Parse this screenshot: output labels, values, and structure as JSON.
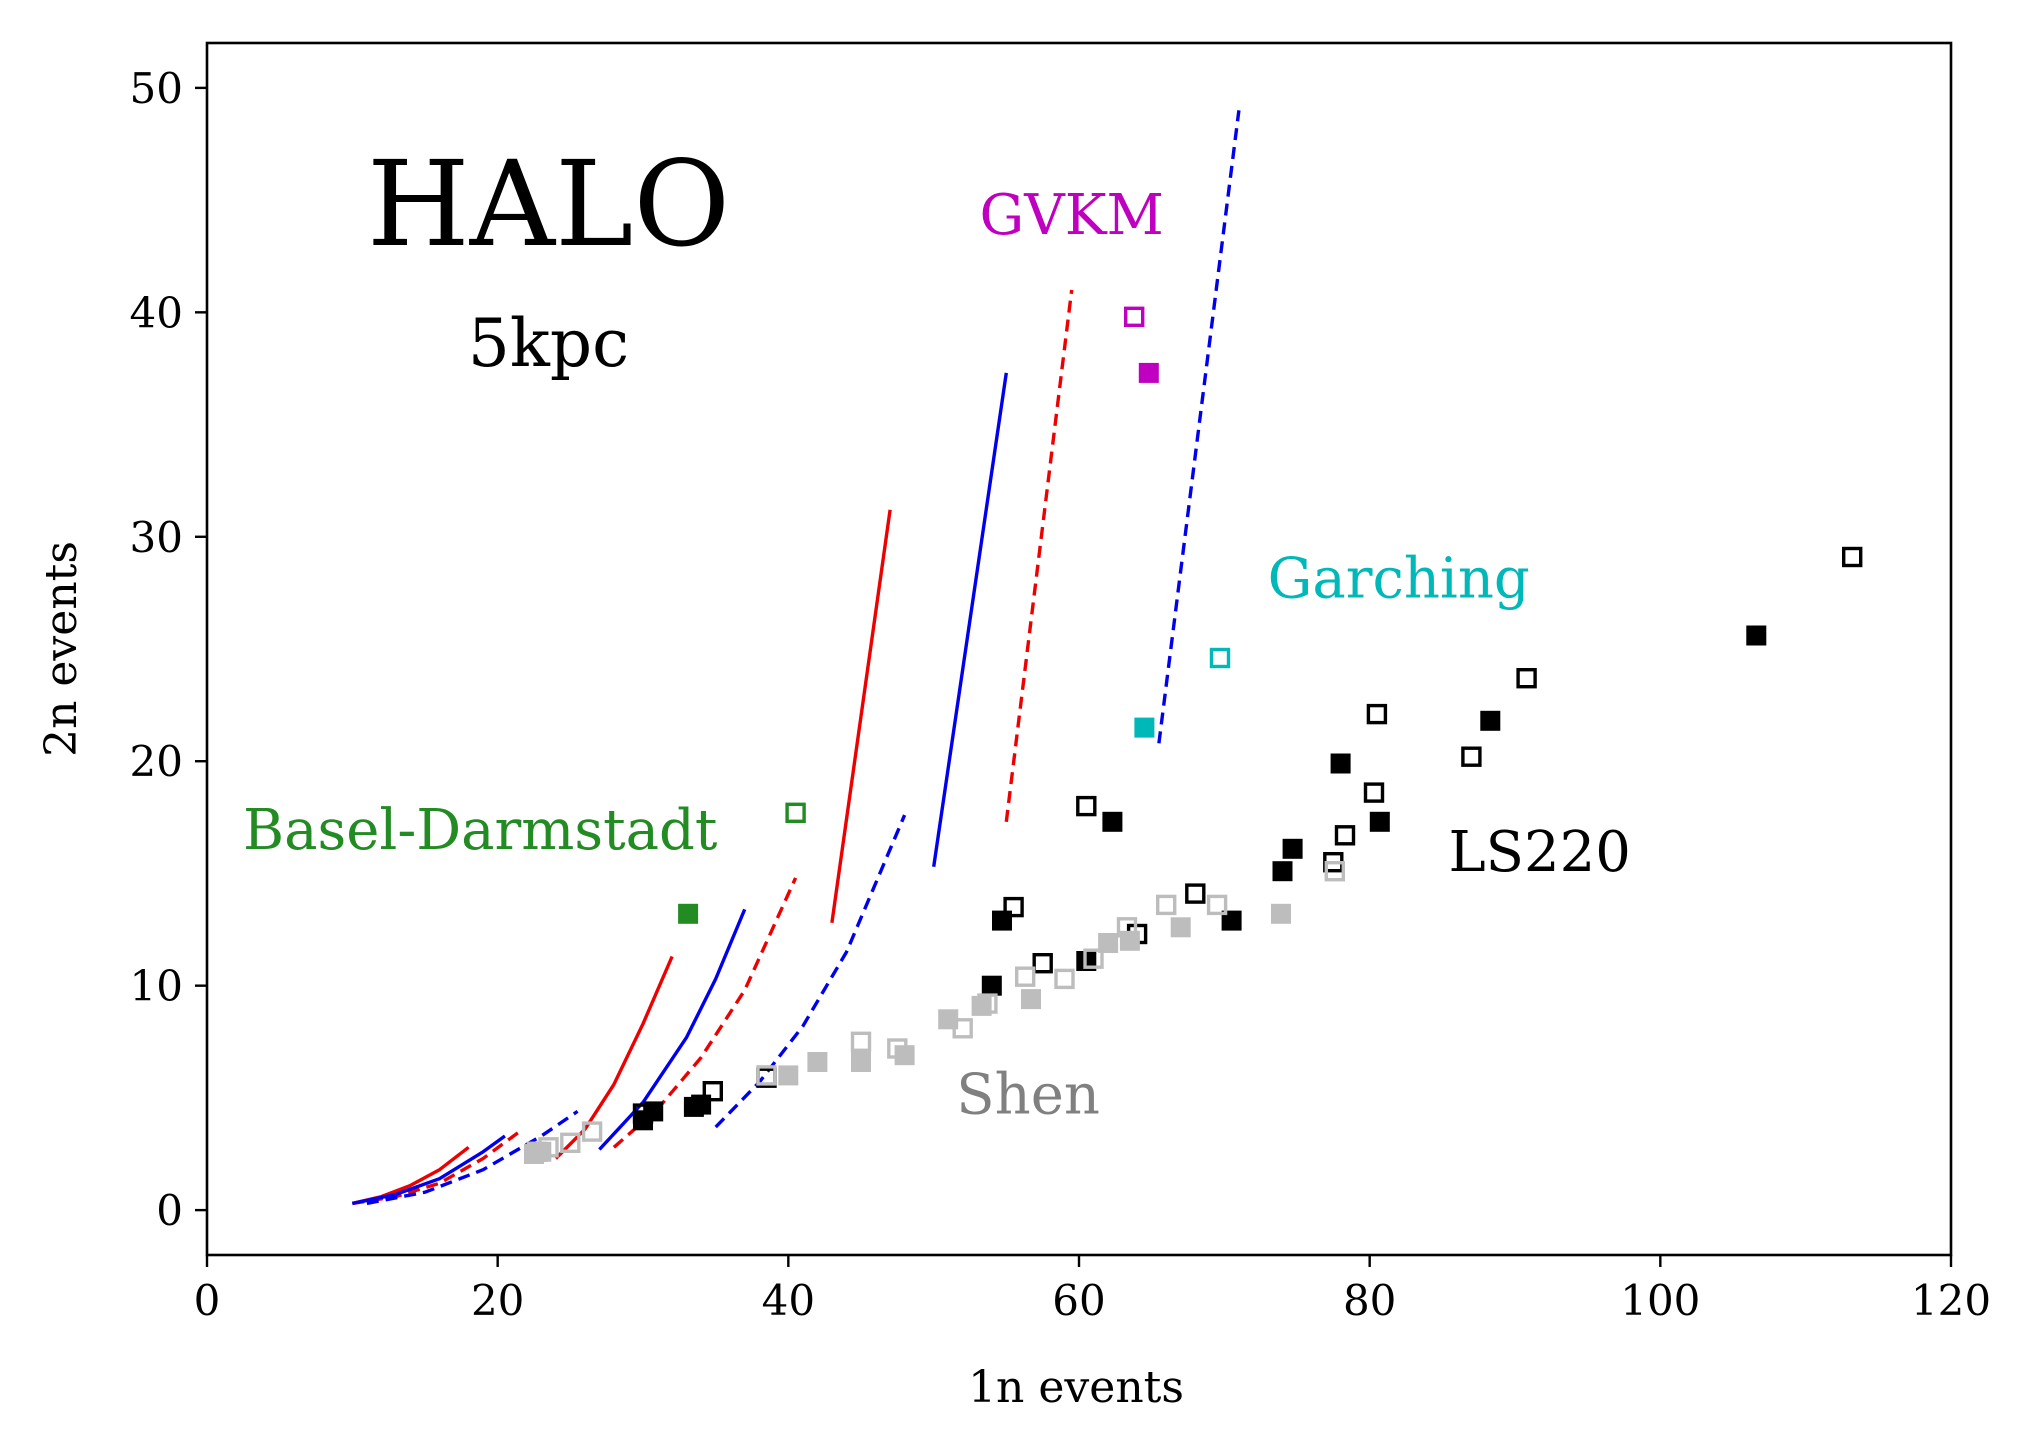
{
  "chart_data": {
    "type": "scatter",
    "title": "",
    "xlabel": "1n events",
    "ylabel": "2n events",
    "xlim": [
      0,
      120
    ],
    "ylim": [
      -2,
      52
    ],
    "xticks": [
      0,
      20,
      40,
      60,
      80,
      100,
      120
    ],
    "yticks": [
      0,
      10,
      20,
      30,
      40,
      50
    ],
    "grid": false,
    "annotations": [
      {
        "text": "HALO",
        "x": 23.5,
        "y": 43,
        "size": "xlarge",
        "color": "#000000"
      },
      {
        "text": "5kpc",
        "x": 23.5,
        "y": 37.6,
        "size": "large",
        "color": "#000000"
      },
      {
        "text": "GVKM",
        "x": 59.5,
        "y": 43.5,
        "size": "medium",
        "color": "#c000c0"
      },
      {
        "text": "Garching",
        "x": 82,
        "y": 27.3,
        "size": "medium",
        "color": "#00b8b8"
      },
      {
        "text": "Basel-Darmstadt",
        "x": 18.8,
        "y": 16.1,
        "size": "medium",
        "color": "#228b22"
      },
      {
        "text": "LS220",
        "x": 91.7,
        "y": 15.1,
        "size": "medium",
        "color": "#000000"
      },
      {
        "text": "Shen",
        "x": 56.5,
        "y": 4.3,
        "size": "medium",
        "color": "#808080"
      }
    ],
    "colors": {
      "red": "#ee0000",
      "blue": "#0000ee",
      "black": "#000000",
      "gray": "#bdbdbd",
      "green": "#228b22",
      "magenta": "#c000c0",
      "cyan": "#00b8b8"
    },
    "line_series": [
      {
        "color": "red",
        "style": "solid",
        "points": [
          [
            10,
            0.3
          ],
          [
            12,
            0.6
          ],
          [
            14,
            1.1
          ],
          [
            16,
            1.8
          ],
          [
            18,
            2.8
          ]
        ]
      },
      {
        "color": "red",
        "style": "dashed",
        "points": [
          [
            10,
            0.3
          ],
          [
            13,
            0.6
          ],
          [
            16,
            1.2
          ],
          [
            19,
            2.3
          ],
          [
            21.5,
            3.5
          ]
        ]
      },
      {
        "color": "red",
        "style": "solid",
        "points": [
          [
            24,
            2.3
          ],
          [
            26,
            3.6
          ],
          [
            28,
            5.6
          ],
          [
            30,
            8.3
          ],
          [
            32,
            11.3
          ]
        ]
      },
      {
        "color": "red",
        "style": "dashed",
        "points": [
          [
            28,
            2.8
          ],
          [
            31,
            4.5
          ],
          [
            34,
            6.8
          ],
          [
            37,
            9.8
          ],
          [
            40.5,
            14.8
          ]
        ]
      },
      {
        "color": "red",
        "style": "solid",
        "points": [
          [
            43,
            12.8
          ],
          [
            47,
            31.2
          ]
        ]
      },
      {
        "color": "red",
        "style": "dashed",
        "points": [
          [
            55,
            17.3
          ],
          [
            59.5,
            41
          ]
        ]
      },
      {
        "color": "blue",
        "style": "solid",
        "points": [
          [
            10,
            0.3
          ],
          [
            13,
            0.7
          ],
          [
            16,
            1.4
          ],
          [
            19,
            2.6
          ],
          [
            20.5,
            3.3
          ]
        ]
      },
      {
        "color": "blue",
        "style": "dashed",
        "points": [
          [
            11,
            0.3
          ],
          [
            15,
            0.8
          ],
          [
            19,
            1.8
          ],
          [
            23,
            3.3
          ],
          [
            25.5,
            4.4
          ]
        ]
      },
      {
        "color": "blue",
        "style": "solid",
        "points": [
          [
            27,
            2.7
          ],
          [
            30,
            4.8
          ],
          [
            33,
            7.7
          ],
          [
            35,
            10.3
          ],
          [
            37,
            13.4
          ]
        ]
      },
      {
        "color": "blue",
        "style": "dashed",
        "points": [
          [
            35,
            3.7
          ],
          [
            38,
            5.7
          ],
          [
            41,
            8.2
          ],
          [
            44,
            11.5
          ],
          [
            48,
            17.6
          ]
        ]
      },
      {
        "color": "blue",
        "style": "solid",
        "points": [
          [
            50,
            15.3
          ],
          [
            55,
            37.3
          ]
        ]
      },
      {
        "color": "blue",
        "style": "dashed",
        "points": [
          [
            65.5,
            20.8
          ],
          [
            71,
            49
          ]
        ]
      }
    ],
    "marker_series": [
      {
        "color": "black",
        "filled": false,
        "points": [
          [
            30,
            4.3
          ],
          [
            34.8,
            5.3
          ],
          [
            38.5,
            5.9
          ],
          [
            55.5,
            13.5
          ],
          [
            57.5,
            11
          ],
          [
            60.5,
            18
          ],
          [
            64,
            12.3
          ],
          [
            68,
            14.1
          ],
          [
            77.5,
            15.5
          ],
          [
            78.3,
            16.7
          ],
          [
            80.3,
            18.6
          ],
          [
            80.5,
            22.1
          ],
          [
            87,
            20.2
          ],
          [
            90.8,
            23.7
          ],
          [
            113.2,
            29.1
          ]
        ]
      },
      {
        "color": "black",
        "filled": true,
        "points": [
          [
            30,
            4
          ],
          [
            30.7,
            4.4
          ],
          [
            33.5,
            4.6
          ],
          [
            34,
            4.7
          ],
          [
            54,
            10
          ],
          [
            54.7,
            12.9
          ],
          [
            60.5,
            11.1
          ],
          [
            62.3,
            17.3
          ],
          [
            70.5,
            12.9
          ],
          [
            74,
            15.1
          ],
          [
            74.7,
            16.1
          ],
          [
            78,
            19.9
          ],
          [
            80.7,
            17.3
          ],
          [
            88.3,
            21.8
          ],
          [
            106.6,
            25.6
          ]
        ]
      },
      {
        "color": "gray",
        "filled": false,
        "points": [
          [
            22.7,
            2.6
          ],
          [
            23.5,
            2.8
          ],
          [
            25,
            3
          ],
          [
            26.5,
            3.5
          ],
          [
            38.5,
            6
          ],
          [
            45,
            7.5
          ],
          [
            47.5,
            7.2
          ],
          [
            52,
            8.1
          ],
          [
            53.7,
            9.2
          ],
          [
            56.3,
            10.4
          ],
          [
            59,
            10.3
          ],
          [
            61,
            11.2
          ],
          [
            63.3,
            12.6
          ],
          [
            66,
            13.6
          ],
          [
            69.5,
            13.6
          ],
          [
            77.6,
            15.1
          ]
        ]
      },
      {
        "color": "gray",
        "filled": true,
        "points": [
          [
            22.5,
            2.5
          ],
          [
            23,
            2.6
          ],
          [
            40,
            6
          ],
          [
            42,
            6.6
          ],
          [
            45,
            6.6
          ],
          [
            48,
            6.9
          ],
          [
            51,
            8.5
          ],
          [
            53.3,
            9.1
          ],
          [
            56.7,
            9.4
          ],
          [
            62,
            11.9
          ],
          [
            63.5,
            12
          ],
          [
            67,
            12.6
          ],
          [
            73.9,
            13.2
          ]
        ]
      },
      {
        "color": "green",
        "filled": false,
        "points": [
          [
            40.5,
            17.7
          ]
        ]
      },
      {
        "color": "green",
        "filled": true,
        "points": [
          [
            33.1,
            13.2
          ]
        ]
      },
      {
        "color": "magenta",
        "filled": false,
        "points": [
          [
            63.8,
            39.8
          ]
        ]
      },
      {
        "color": "magenta",
        "filled": true,
        "points": [
          [
            64.8,
            37.3
          ]
        ]
      },
      {
        "color": "cyan",
        "filled": false,
        "points": [
          [
            69.7,
            24.6
          ]
        ]
      },
      {
        "color": "cyan",
        "filled": true,
        "points": [
          [
            64.5,
            21.5
          ]
        ]
      }
    ]
  }
}
